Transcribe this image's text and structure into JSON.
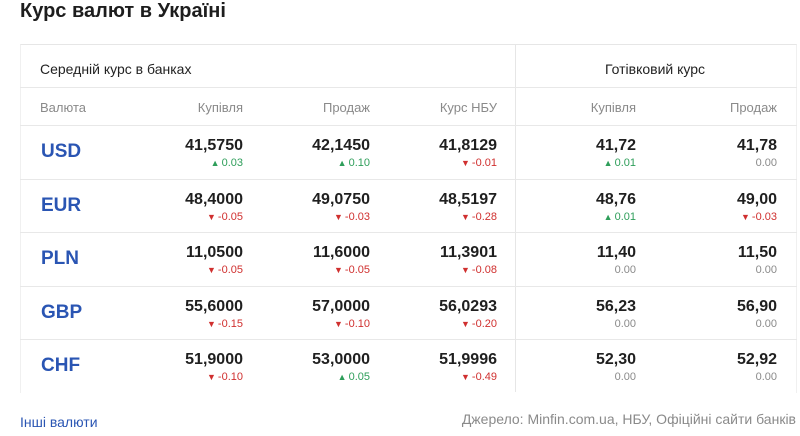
{
  "header": {
    "title": "Курс валют в Україні"
  },
  "table": {
    "groups": [
      "Середній курс в банках",
      "Готівковий курс"
    ],
    "columns": [
      "Валюта",
      "Купівля",
      "Продаж",
      "Курс НБУ",
      "Купівля",
      "Продаж"
    ],
    "rows": [
      {
        "currency": "USD",
        "cells": [
          {
            "value": "41,5750",
            "change": "0.03"
          },
          {
            "value": "42,1450",
            "change": "0.10"
          },
          {
            "value": "41,8129",
            "change": "-0.01"
          },
          {
            "value": "41,72",
            "change": "0.01"
          },
          {
            "value": "41,78",
            "change": "0.00"
          }
        ]
      },
      {
        "currency": "EUR",
        "cells": [
          {
            "value": "48,4000",
            "change": "-0.05"
          },
          {
            "value": "49,0750",
            "change": "-0.03"
          },
          {
            "value": "48,5197",
            "change": "-0.28"
          },
          {
            "value": "48,76",
            "change": "0.01"
          },
          {
            "value": "49,00",
            "change": "-0.03"
          }
        ]
      },
      {
        "currency": "PLN",
        "cells": [
          {
            "value": "11,0500",
            "change": "-0.05"
          },
          {
            "value": "11,6000",
            "change": "-0.05"
          },
          {
            "value": "11,3901",
            "change": "-0.08"
          },
          {
            "value": "11,40",
            "change": "0.00"
          },
          {
            "value": "11,50",
            "change": "0.00"
          }
        ]
      },
      {
        "currency": "GBP",
        "cells": [
          {
            "value": "55,6000",
            "change": "-0.15"
          },
          {
            "value": "57,0000",
            "change": "-0.10"
          },
          {
            "value": "56,0293",
            "change": "-0.20"
          },
          {
            "value": "56,23",
            "change": "0.00"
          },
          {
            "value": "56,90",
            "change": "0.00"
          }
        ]
      },
      {
        "currency": "CHF",
        "cells": [
          {
            "value": "51,9000",
            "change": "-0.10"
          },
          {
            "value": "53,0000",
            "change": "0.05"
          },
          {
            "value": "51,9996",
            "change": "-0.49"
          },
          {
            "value": "52,30",
            "change": "0.00"
          },
          {
            "value": "52,92",
            "change": "0.00"
          }
        ]
      }
    ]
  },
  "footer": {
    "link": "Інші валюти",
    "source": "Джерело: Minfin.com.ua, НБУ, Офіційні сайти банків"
  }
}
